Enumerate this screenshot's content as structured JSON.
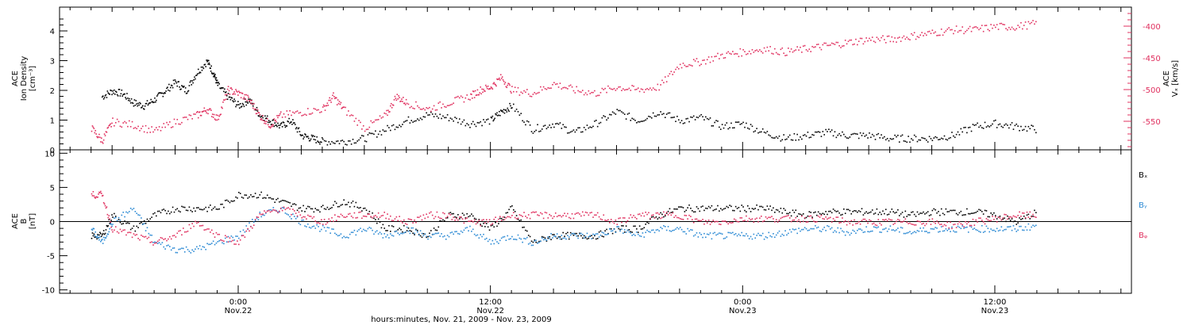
{
  "chart_data": [
    {
      "type": "scatter",
      "panel": "ion-density-and-vx",
      "ylabel_lines": [
        "ACE",
        "Ion Density",
        "[cm⁻³]"
      ],
      "ylim": [
        0,
        4.8
      ],
      "y_ticks": [
        "0",
        "1",
        "2",
        "3",
        "4"
      ],
      "y2label_lines": [
        "ACE",
        "Vₓ [km/s]"
      ],
      "y2lim": [
        -595,
        -370
      ],
      "y2_ticks": [
        "-400",
        "-450",
        "-500",
        "-550"
      ],
      "series": [
        {
          "axis": "left",
          "color": "#000000",
          "points_hours": [
            [
              -6.5,
              1.8
            ],
            [
              -6,
              2.0
            ],
            [
              -5.5,
              1.9
            ],
            [
              -5,
              1.6
            ],
            [
              -4.5,
              1.5
            ],
            [
              -4,
              1.7
            ],
            [
              -3.5,
              2.0
            ],
            [
              -3,
              2.3
            ],
            [
              -2.5,
              2.0
            ],
            [
              -2,
              2.6
            ],
            [
              -1.5,
              3.0
            ],
            [
              -1.2,
              2.6
            ],
            [
              -1,
              2.2
            ],
            [
              -0.5,
              1.8
            ],
            [
              0,
              1.5
            ],
            [
              0.5,
              1.7
            ],
            [
              1,
              1.2
            ],
            [
              1.5,
              1.0
            ],
            [
              2,
              0.8
            ],
            [
              2.5,
              1.0
            ],
            [
              3,
              0.5
            ],
            [
              3.5,
              0.4
            ],
            [
              4,
              0.3
            ],
            [
              5,
              0.3
            ],
            [
              6,
              0.4
            ],
            [
              7,
              0.7
            ],
            [
              8,
              1.0
            ],
            [
              9,
              1.2
            ],
            [
              10,
              1.1
            ],
            [
              11,
              0.9
            ],
            [
              12,
              1.0
            ],
            [
              12.5,
              1.3
            ],
            [
              13,
              1.5
            ],
            [
              14,
              0.7
            ],
            [
              15,
              0.9
            ],
            [
              16,
              0.6
            ],
            [
              17,
              0.9
            ],
            [
              18,
              1.3
            ],
            [
              19,
              1.0
            ],
            [
              20,
              1.3
            ],
            [
              21,
              1.0
            ],
            [
              22,
              1.1
            ],
            [
              23,
              0.8
            ],
            [
              24,
              0.9
            ],
            [
              25,
              0.6
            ],
            [
              26,
              0.4
            ],
            [
              27,
              0.5
            ],
            [
              28,
              0.6
            ],
            [
              29,
              0.5
            ],
            [
              30,
              0.5
            ],
            [
              31,
              0.4
            ],
            [
              32,
              0.4
            ],
            [
              33,
              0.4
            ],
            [
              34,
              0.5
            ],
            [
              35,
              0.8
            ],
            [
              36,
              0.9
            ],
            [
              37,
              0.8
            ],
            [
              38,
              0.7
            ]
          ]
        },
        {
          "axis": "right",
          "color": "#e0305f",
          "points_hours": [
            [
              -7,
              -560
            ],
            [
              -6.5,
              -580
            ],
            [
              -6,
              -550
            ],
            [
              -5,
              -555
            ],
            [
              -4,
              -565
            ],
            [
              -3,
              -550
            ],
            [
              -2,
              -540
            ],
            [
              -1.5,
              -530
            ],
            [
              -1,
              -545
            ],
            [
              -0.5,
              -500
            ],
            [
              0,
              -505
            ],
            [
              0.5,
              -515
            ],
            [
              1,
              -540
            ],
            [
              1.5,
              -555
            ],
            [
              2,
              -540
            ],
            [
              3,
              -535
            ],
            [
              4,
              -530
            ],
            [
              4.5,
              -510
            ],
            [
              5,
              -530
            ],
            [
              6,
              -560
            ],
            [
              7,
              -540
            ],
            [
              7.5,
              -510
            ],
            [
              8,
              -520
            ],
            [
              9,
              -530
            ],
            [
              10,
              -520
            ],
            [
              11,
              -510
            ],
            [
              11.5,
              -500
            ],
            [
              12,
              -495
            ],
            [
              12.5,
              -480
            ],
            [
              13,
              -500
            ],
            [
              14,
              -505
            ],
            [
              15,
              -490
            ],
            [
              16,
              -500
            ],
            [
              17,
              -505
            ],
            [
              18,
              -495
            ],
            [
              19,
              -500
            ],
            [
              20,
              -495
            ],
            [
              21,
              -460
            ],
            [
              22,
              -455
            ],
            [
              23,
              -445
            ],
            [
              24,
              -440
            ],
            [
              25,
              -435
            ],
            [
              26,
              -440
            ],
            [
              27,
              -435
            ],
            [
              28,
              -430
            ],
            [
              29,
              -425
            ],
            [
              30,
              -420
            ],
            [
              31,
              -420
            ],
            [
              32,
              -415
            ],
            [
              33,
              -410
            ],
            [
              34,
              -405
            ],
            [
              35,
              -405
            ],
            [
              36,
              -400
            ],
            [
              37,
              -400
            ],
            [
              38,
              -395
            ]
          ]
        }
      ]
    },
    {
      "type": "scatter",
      "panel": "magnetic-field",
      "ylabel_lines": [
        "ACE",
        "B",
        "[nT]"
      ],
      "ylim": [
        -10.5,
        10.5
      ],
      "y_ticks": [
        "10",
        "5",
        "0",
        "-5",
        "-10"
      ],
      "zero_line": true,
      "series": [
        {
          "name": "Bₓ",
          "color": "#000000",
          "points_hours": [
            [
              -7,
              -2
            ],
            [
              -6.5,
              -2
            ],
            [
              -6,
              1
            ],
            [
              -5,
              -1
            ],
            [
              -4,
              1
            ],
            [
              -3,
              2
            ],
            [
              -2,
              2
            ],
            [
              -1,
              2
            ],
            [
              0,
              4
            ],
            [
              1,
              4
            ],
            [
              2,
              3
            ],
            [
              3,
              2
            ],
            [
              4,
              2
            ],
            [
              5,
              3
            ],
            [
              6,
              2
            ],
            [
              7,
              -1
            ],
            [
              8,
              -1
            ],
            [
              9,
              -2
            ],
            [
              10,
              1
            ],
            [
              11,
              1
            ],
            [
              12,
              -1
            ],
            [
              13,
              2
            ],
            [
              14,
              -3
            ],
            [
              15,
              -2
            ],
            [
              16,
              -2
            ],
            [
              17,
              -2
            ],
            [
              18,
              -1
            ],
            [
              19,
              -1
            ],
            [
              20,
              1
            ],
            [
              21,
              2
            ],
            [
              22,
              2
            ],
            [
              23,
              2
            ],
            [
              24,
              2
            ],
            [
              25,
              2
            ],
            [
              26,
              1.5
            ],
            [
              27,
              1
            ],
            [
              28,
              1.5
            ],
            [
              29,
              1.5
            ],
            [
              30,
              1.5
            ],
            [
              31,
              1.5
            ],
            [
              32,
              1
            ],
            [
              33,
              1.5
            ],
            [
              34,
              1.5
            ],
            [
              35,
              1.5
            ],
            [
              36,
              1
            ],
            [
              37,
              0
            ],
            [
              38,
              1.5
            ]
          ]
        },
        {
          "name": "Bᵧ",
          "color": "#2c8ad4",
          "points_hours": [
            [
              -7,
              -1
            ],
            [
              -6.5,
              -3
            ],
            [
              -6,
              0
            ],
            [
              -5,
              2
            ],
            [
              -4,
              -3
            ],
            [
              -3,
              -4
            ],
            [
              -2,
              -4
            ],
            [
              -1,
              -3
            ],
            [
              0,
              -2
            ],
            [
              1,
              1
            ],
            [
              2,
              2
            ],
            [
              3,
              0
            ],
            [
              4,
              -1
            ],
            [
              5,
              -2
            ],
            [
              6,
              -1
            ],
            [
              7,
              -2
            ],
            [
              8,
              -1
            ],
            [
              9,
              -2
            ],
            [
              10,
              -2
            ],
            [
              11,
              -1
            ],
            [
              12,
              -3
            ],
            [
              13,
              -2
            ],
            [
              14,
              -3
            ],
            [
              15,
              -2
            ],
            [
              16,
              -2
            ],
            [
              17,
              -2
            ],
            [
              18,
              -1
            ],
            [
              19,
              -2
            ],
            [
              20,
              -1
            ],
            [
              21,
              -1
            ],
            [
              22,
              -2
            ],
            [
              23,
              -2
            ],
            [
              24,
              -2
            ],
            [
              25,
              -2
            ],
            [
              26,
              -1.5
            ],
            [
              27,
              -1
            ],
            [
              28,
              -1
            ],
            [
              29,
              -1.5
            ],
            [
              30,
              -1
            ],
            [
              31,
              -1
            ],
            [
              32,
              -1.5
            ],
            [
              33,
              -1
            ],
            [
              34,
              -1
            ],
            [
              35,
              -1
            ],
            [
              36,
              -1
            ],
            [
              37,
              -1
            ],
            [
              38,
              -0.5
            ]
          ]
        },
        {
          "name": "Bᵩ",
          "color": "#e0305f",
          "points_hours": [
            [
              -7,
              4
            ],
            [
              -6.5,
              4
            ],
            [
              -6,
              -1
            ],
            [
              -5,
              -2
            ],
            [
              -4,
              -3
            ],
            [
              -3,
              -2
            ],
            [
              -2,
              0
            ],
            [
              -1,
              -2
            ],
            [
              0,
              -3
            ],
            [
              1,
              1
            ],
            [
              2,
              2
            ],
            [
              3,
              1
            ],
            [
              4,
              0
            ],
            [
              5,
              1
            ],
            [
              6,
              1
            ],
            [
              7,
              1
            ],
            [
              8,
              0
            ],
            [
              9,
              1
            ],
            [
              10,
              1
            ],
            [
              11,
              0
            ],
            [
              12,
              0
            ],
            [
              13,
              1
            ],
            [
              14,
              1
            ],
            [
              15,
              1
            ],
            [
              16,
              1
            ],
            [
              17,
              1
            ],
            [
              18,
              0
            ],
            [
              19,
              1
            ],
            [
              20,
              1
            ],
            [
              21,
              1
            ],
            [
              22,
              0
            ],
            [
              23,
              0
            ],
            [
              24,
              0.5
            ],
            [
              25,
              0.5
            ],
            [
              26,
              0.5
            ],
            [
              27,
              0.5
            ],
            [
              28,
              0.5
            ],
            [
              29,
              0
            ],
            [
              30,
              0
            ],
            [
              31,
              0
            ],
            [
              32,
              0
            ],
            [
              33,
              0
            ],
            [
              34,
              -0.5
            ],
            [
              35,
              0
            ],
            [
              36,
              0.5
            ],
            [
              37,
              1
            ],
            [
              38,
              1
            ]
          ]
        }
      ]
    }
  ],
  "x_axis": {
    "xlim_hours": [
      -8.5,
      42.5
    ],
    "major_ticks": [
      {
        "hour": 0,
        "time": "0:00",
        "date": "Nov.22"
      },
      {
        "hour": 12,
        "time": "12:00",
        "date": "Nov.22"
      },
      {
        "hour": 24,
        "time": "0:00",
        "date": "Nov.23"
      },
      {
        "hour": 36,
        "time": "12:00",
        "date": "Nov.23"
      }
    ],
    "xlabel": "hours:minutes, Nov. 21, 2009 - Nov. 23, 2009"
  }
}
